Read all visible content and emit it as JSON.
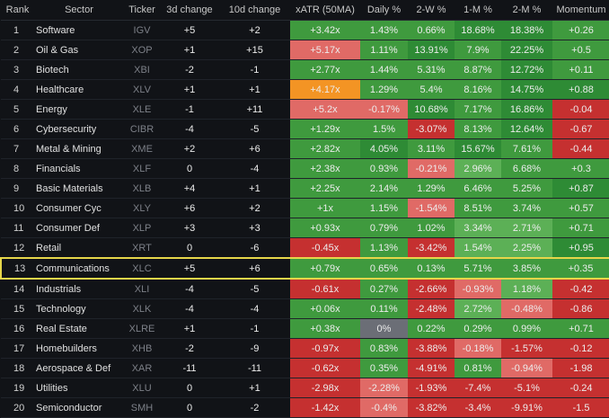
{
  "colors": {
    "background": "#111317",
    "green_strong": "#2e8b35",
    "green_medium": "#3f9a3e",
    "green_light": "#5cb056",
    "red_strong": "#c53030",
    "red_light": "#e06a66",
    "orange": "#f39424",
    "gray": "#6b6e76",
    "highlight_border": "#e6d64a"
  },
  "columns": [
    "Rank",
    "Sector",
    "Ticker",
    "3d change",
    "10d change",
    "xATR (50MA)",
    "Daily %",
    "2-W %",
    "1-M %",
    "2-M %",
    "Momentum"
  ],
  "highlighted_rank": "13",
  "rows": [
    {
      "rank": "1",
      "sector": "Software",
      "ticker": "IGV",
      "d3": "+5",
      "d10": "+2",
      "xatr": "+3.42x",
      "daily": "1.43%",
      "w2": "0.66%",
      "m1": "18.68%",
      "m2": "18.38%",
      "mom": "+0.26",
      "tone": {
        "d3": "pos",
        "d10": "pos"
      },
      "bg": {
        "xatr": "#3f9a3e",
        "daily": "#3f9a3e",
        "w2": "#3f9a3e",
        "m1": "#2e8b35",
        "m2": "#2e8b35",
        "mom": "#3f9a3e"
      }
    },
    {
      "rank": "2",
      "sector": "Oil & Gas",
      "ticker": "XOP",
      "d3": "+1",
      "d10": "+15",
      "xatr": "+5.17x",
      "daily": "1.11%",
      "w2": "13.91%",
      "m1": "7.9%",
      "m2": "22.25%",
      "mom": "+0.5",
      "tone": {
        "d3": "pos",
        "d10": "pos"
      },
      "bg": {
        "xatr": "#e06a66",
        "daily": "#3f9a3e",
        "w2": "#2e8b35",
        "m1": "#3f9a3e",
        "m2": "#2e8b35",
        "mom": "#3f9a3e"
      }
    },
    {
      "rank": "3",
      "sector": "Biotech",
      "ticker": "XBI",
      "d3": "-2",
      "d10": "-1",
      "xatr": "+2.77x",
      "daily": "1.44%",
      "w2": "5.31%",
      "m1": "8.87%",
      "m2": "12.72%",
      "mom": "+0.11",
      "tone": {
        "d3": "neg",
        "d10": "neg"
      },
      "bg": {
        "xatr": "#3f9a3e",
        "daily": "#3f9a3e",
        "w2": "#3f9a3e",
        "m1": "#3f9a3e",
        "m2": "#2e8b35",
        "mom": "#3f9a3e"
      }
    },
    {
      "rank": "4",
      "sector": "Healthcare",
      "ticker": "XLV",
      "d3": "+1",
      "d10": "+1",
      "xatr": "+4.17x",
      "daily": "1.29%",
      "w2": "5.4%",
      "m1": "8.16%",
      "m2": "14.75%",
      "mom": "+0.88",
      "tone": {
        "d3": "pos",
        "d10": "pos"
      },
      "bg": {
        "xatr": "#f39424",
        "daily": "#3f9a3e",
        "w2": "#3f9a3e",
        "m1": "#3f9a3e",
        "m2": "#2e8b35",
        "mom": "#2e8b35"
      }
    },
    {
      "rank": "5",
      "sector": "Energy",
      "ticker": "XLE",
      "d3": "-1",
      "d10": "+11",
      "xatr": "+5.2x",
      "daily": "-0.17%",
      "w2": "10.68%",
      "m1": "7.17%",
      "m2": "16.86%",
      "mom": "-0.04",
      "tone": {
        "d3": "neg",
        "d10": "pos"
      },
      "bg": {
        "xatr": "#e06a66",
        "daily": "#e06a66",
        "w2": "#2e8b35",
        "m1": "#3f9a3e",
        "m2": "#2e8b35",
        "mom": "#c53030"
      }
    },
    {
      "rank": "6",
      "sector": "Cybersecurity",
      "ticker": "CIBR",
      "d3": "-4",
      "d10": "-5",
      "xatr": "+1.29x",
      "daily": "1.5%",
      "w2": "-3.07%",
      "m1": "8.13%",
      "m2": "12.64%",
      "mom": "-0.67",
      "tone": {
        "d3": "neg",
        "d10": "neg"
      },
      "bg": {
        "xatr": "#3f9a3e",
        "daily": "#3f9a3e",
        "w2": "#c53030",
        "m1": "#3f9a3e",
        "m2": "#2e8b35",
        "mom": "#c53030"
      }
    },
    {
      "rank": "7",
      "sector": "Metal & Mining",
      "ticker": "XME",
      "d3": "+2",
      "d10": "+6",
      "xatr": "+2.82x",
      "daily": "4.05%",
      "w2": "3.11%",
      "m1": "15.67%",
      "m2": "7.61%",
      "mom": "-0.44",
      "tone": {
        "d3": "pos",
        "d10": "pos"
      },
      "bg": {
        "xatr": "#3f9a3e",
        "daily": "#2e8b35",
        "w2": "#3f9a3e",
        "m1": "#2e8b35",
        "m2": "#3f9a3e",
        "mom": "#c53030"
      }
    },
    {
      "rank": "8",
      "sector": "Financials",
      "ticker": "XLF",
      "d3": "0",
      "d10": "-4",
      "xatr": "+2.38x",
      "daily": "0.93%",
      "w2": "-0.21%",
      "m1": "2.96%",
      "m2": "6.68%",
      "mom": "+0.3",
      "tone": {
        "d3": "zero",
        "d10": "neg"
      },
      "bg": {
        "xatr": "#3f9a3e",
        "daily": "#3f9a3e",
        "w2": "#e06a66",
        "m1": "#5cb056",
        "m2": "#3f9a3e",
        "mom": "#3f9a3e"
      }
    },
    {
      "rank": "9",
      "sector": "Basic Materials",
      "ticker": "XLB",
      "d3": "+4",
      "d10": "+1",
      "xatr": "+2.25x",
      "daily": "2.14%",
      "w2": "1.29%",
      "m1": "6.46%",
      "m2": "5.25%",
      "mom": "+0.87",
      "tone": {
        "d3": "pos",
        "d10": "pos"
      },
      "bg": {
        "xatr": "#3f9a3e",
        "daily": "#3f9a3e",
        "w2": "#3f9a3e",
        "m1": "#3f9a3e",
        "m2": "#3f9a3e",
        "mom": "#2e8b35"
      }
    },
    {
      "rank": "10",
      "sector": "Consumer Cyc",
      "ticker": "XLY",
      "d3": "+6",
      "d10": "+2",
      "xatr": "+1x",
      "daily": "1.15%",
      "w2": "-1.54%",
      "m1": "8.51%",
      "m2": "3.74%",
      "mom": "+0.57",
      "tone": {
        "d3": "pos",
        "d10": "pos"
      },
      "bg": {
        "xatr": "#3f9a3e",
        "daily": "#3f9a3e",
        "w2": "#e06a66",
        "m1": "#3f9a3e",
        "m2": "#3f9a3e",
        "mom": "#3f9a3e"
      }
    },
    {
      "rank": "11",
      "sector": "Consumer Def",
      "ticker": "XLP",
      "d3": "+3",
      "d10": "+3",
      "xatr": "+0.93x",
      "daily": "0.79%",
      "w2": "1.02%",
      "m1": "3.34%",
      "m2": "2.71%",
      "mom": "+0.71",
      "tone": {
        "d3": "pos",
        "d10": "pos"
      },
      "bg": {
        "xatr": "#3f9a3e",
        "daily": "#3f9a3e",
        "w2": "#3f9a3e",
        "m1": "#5cb056",
        "m2": "#5cb056",
        "mom": "#3f9a3e"
      }
    },
    {
      "rank": "12",
      "sector": "Retail",
      "ticker": "XRT",
      "d3": "0",
      "d10": "-6",
      "xatr": "-0.45x",
      "daily": "1.13%",
      "w2": "-3.42%",
      "m1": "1.54%",
      "m2": "2.25%",
      "mom": "+0.95",
      "tone": {
        "d3": "zero",
        "d10": "neg"
      },
      "bg": {
        "xatr": "#c53030",
        "daily": "#3f9a3e",
        "w2": "#c53030",
        "m1": "#5cb056",
        "m2": "#5cb056",
        "mom": "#2e8b35"
      }
    },
    {
      "rank": "13",
      "sector": "Communications",
      "ticker": "XLC",
      "d3": "+5",
      "d10": "+6",
      "xatr": "+0.79x",
      "daily": "0.65%",
      "w2": "0.13%",
      "m1": "5.71%",
      "m2": "3.85%",
      "mom": "+0.35",
      "tone": {
        "d3": "pos",
        "d10": "pos"
      },
      "bg": {
        "xatr": "#3f9a3e",
        "daily": "#3f9a3e",
        "w2": "#3f9a3e",
        "m1": "#3f9a3e",
        "m2": "#3f9a3e",
        "mom": "#3f9a3e"
      }
    },
    {
      "rank": "14",
      "sector": "Industrials",
      "ticker": "XLI",
      "d3": "-4",
      "d10": "-5",
      "xatr": "-0.61x",
      "daily": "0.27%",
      "w2": "-2.66%",
      "m1": "-0.93%",
      "m2": "1.18%",
      "mom": "-0.42",
      "tone": {
        "d3": "neg",
        "d10": "neg"
      },
      "bg": {
        "xatr": "#c53030",
        "daily": "#3f9a3e",
        "w2": "#c53030",
        "m1": "#e06a66",
        "m2": "#5cb056",
        "mom": "#c53030"
      }
    },
    {
      "rank": "15",
      "sector": "Technology",
      "ticker": "XLK",
      "d3": "-4",
      "d10": "-4",
      "xatr": "+0.06x",
      "daily": "0.11%",
      "w2": "-2.48%",
      "m1": "2.72%",
      "m2": "-0.48%",
      "mom": "-0.86",
      "tone": {
        "d3": "neg",
        "d10": "neg"
      },
      "bg": {
        "xatr": "#3f9a3e",
        "daily": "#3f9a3e",
        "w2": "#c53030",
        "m1": "#5cb056",
        "m2": "#e06a66",
        "mom": "#c53030"
      }
    },
    {
      "rank": "16",
      "sector": "Real Estate",
      "ticker": "XLRE",
      "d3": "+1",
      "d10": "-1",
      "xatr": "+0.38x",
      "daily": "0%",
      "w2": "0.22%",
      "m1": "0.29%",
      "m2": "0.99%",
      "mom": "+0.71",
      "tone": {
        "d3": "pos",
        "d10": "neg"
      },
      "bg": {
        "xatr": "#3f9a3e",
        "daily": "#6b6e76",
        "w2": "#3f9a3e",
        "m1": "#3f9a3e",
        "m2": "#3f9a3e",
        "mom": "#3f9a3e"
      }
    },
    {
      "rank": "17",
      "sector": "Homebuilders",
      "ticker": "XHB",
      "d3": "-2",
      "d10": "-9",
      "xatr": "-0.97x",
      "daily": "0.83%",
      "w2": "-3.88%",
      "m1": "-0.18%",
      "m2": "-1.57%",
      "mom": "-0.12",
      "tone": {
        "d3": "neg",
        "d10": "neg"
      },
      "bg": {
        "xatr": "#c53030",
        "daily": "#3f9a3e",
        "w2": "#c53030",
        "m1": "#e06a66",
        "m2": "#c53030",
        "mom": "#c53030"
      }
    },
    {
      "rank": "18",
      "sector": "Aerospace & Def",
      "ticker": "XAR",
      "d3": "-11",
      "d10": "-11",
      "xatr": "-0.62x",
      "daily": "0.35%",
      "w2": "-4.91%",
      "m1": "0.81%",
      "m2": "-0.94%",
      "mom": "-1.98",
      "tone": {
        "d3": "neg",
        "d10": "neg"
      },
      "bg": {
        "xatr": "#c53030",
        "daily": "#3f9a3e",
        "w2": "#c53030",
        "m1": "#3f9a3e",
        "m2": "#e06a66",
        "mom": "#c53030"
      }
    },
    {
      "rank": "19",
      "sector": "Utilities",
      "ticker": "XLU",
      "d3": "0",
      "d10": "+1",
      "xatr": "-2.98x",
      "daily": "-2.28%",
      "w2": "-1.93%",
      "m1": "-7.4%",
      "m2": "-5.1%",
      "mom": "-0.24",
      "tone": {
        "d3": "zero",
        "d10": "pos"
      },
      "bg": {
        "xatr": "#c53030",
        "daily": "#e06a66",
        "w2": "#c53030",
        "m1": "#c53030",
        "m2": "#c53030",
        "mom": "#c53030"
      }
    },
    {
      "rank": "20",
      "sector": "Semiconductor",
      "ticker": "SMH",
      "d3": "0",
      "d10": "-2",
      "xatr": "-1.42x",
      "daily": "-0.4%",
      "w2": "-3.82%",
      "m1": "-3.4%",
      "m2": "-9.91%",
      "mom": "-1.5",
      "tone": {
        "d3": "zero",
        "d10": "neg"
      },
      "bg": {
        "xatr": "#c53030",
        "daily": "#e06a66",
        "w2": "#c53030",
        "m1": "#c53030",
        "m2": "#c53030",
        "mom": "#c53030"
      }
    }
  ]
}
